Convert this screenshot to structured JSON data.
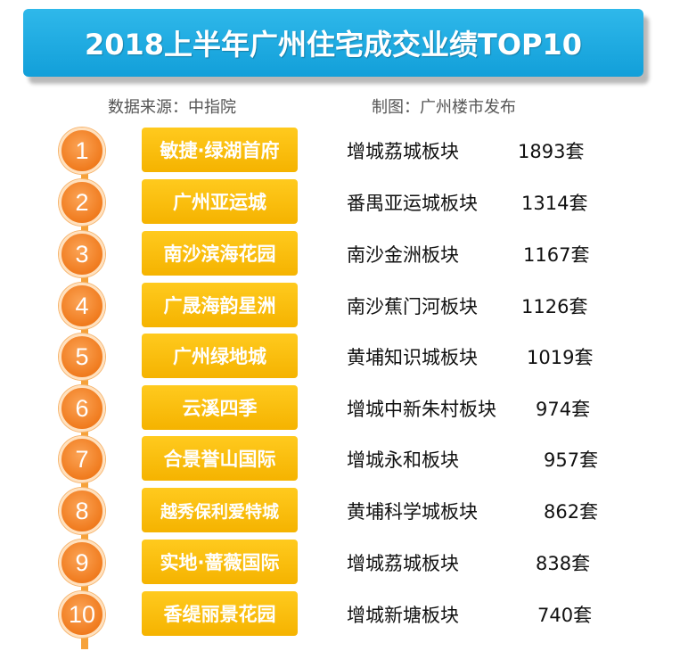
{
  "title": "2018上半年广州住宅成交业绩TOP10",
  "source": "数据来源：中指院",
  "made_by": "制图：广州楼市发布",
  "colors": {
    "banner": "#1aa9e0",
    "rank_circle": "#f07b1e",
    "name_box": "#fcbf0a",
    "rail": "#f6a23a"
  },
  "rows": [
    {
      "rank": "1",
      "name": "敏捷·绿湖首府",
      "district": "增城荔城板块",
      "units": "1893套"
    },
    {
      "rank": "2",
      "name": "广州亚运城",
      "district": "番禺亚运城板块",
      "units": "1314套"
    },
    {
      "rank": "3",
      "name": "南沙滨海花园",
      "district": "南沙金洲板块",
      "units": "1167套"
    },
    {
      "rank": "4",
      "name": "广晟海韵星洲",
      "district": "南沙蕉门河板块",
      "units": "1126套"
    },
    {
      "rank": "5",
      "name": "广州绿地城",
      "district": "黄埔知识城板块",
      "units": "1019套"
    },
    {
      "rank": "6",
      "name": "云溪四季",
      "district": "增城中新朱村板块",
      "units": "974套"
    },
    {
      "rank": "7",
      "name": "合景誉山国际",
      "district": "增城永和板块",
      "units": "957套"
    },
    {
      "rank": "8",
      "name": "越秀保利爱特城",
      "district": "黄埔科学城板块",
      "units": "862套"
    },
    {
      "rank": "9",
      "name": "实地·蔷薇国际",
      "district": "增城荔城板块",
      "units": "838套"
    },
    {
      "rank": "10",
      "name": "香缇丽景花园",
      "district": "增城新塘板块",
      "units": "740套"
    }
  ]
}
